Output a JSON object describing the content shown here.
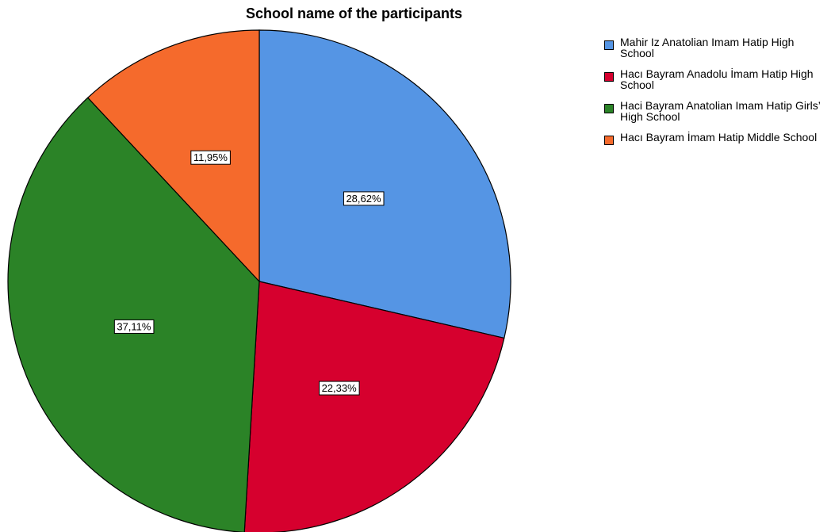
{
  "chart_data": {
    "type": "pie",
    "title": "School name of the participants",
    "slices": [
      {
        "label": "Mahir Iz Anatolian Imam Hatip High School",
        "value": 28.62,
        "display": "28,62%",
        "color": "#5595e4"
      },
      {
        "label": "Hacı Bayram Anadolu İmam Hatip High School",
        "value": 22.33,
        "display": "22,33%",
        "color": "#d6002e"
      },
      {
        "label": "Haci Bayram Anatolian Imam Hatip Girls’ High School",
        "value": 37.11,
        "display": "37,11%",
        "color": "#2b8327"
      },
      {
        "label": "Hacı Bayram İmam Hatip Middle School",
        "value": 11.95,
        "display": "11,95%",
        "color": "#f56a2c"
      }
    ],
    "start_angle": "12 o'clock",
    "direction": "clockwise",
    "legend_position": "right"
  }
}
